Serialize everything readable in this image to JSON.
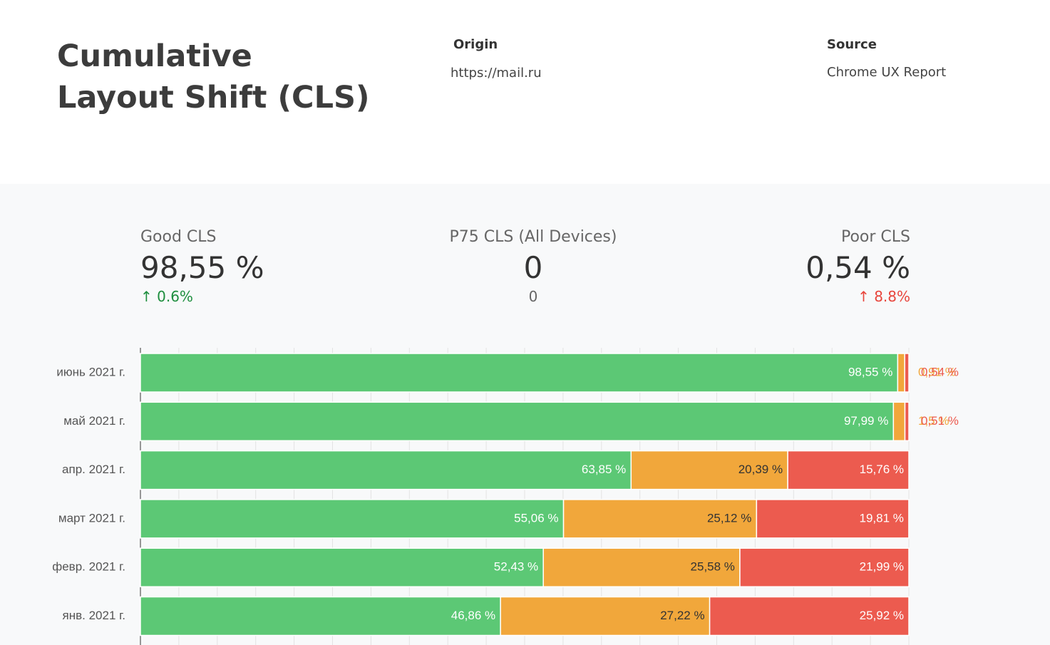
{
  "header": {
    "title": "Cumulative Layout Shift (CLS)",
    "origin_label": "Origin",
    "origin": "https://mail.ru",
    "source_label": "Source",
    "source": "Chrome UX Report"
  },
  "scorecards": [
    {
      "label": "Good CLS",
      "value": "98,55 %",
      "change": "0.6%"
    },
    {
      "label": "P75 CLS (All Devices)",
      "value": "0",
      "change": "0"
    },
    {
      "label": "Poor CLS",
      "value": "0,54 %",
      "change": "8.8%"
    }
  ],
  "chart_data": {
    "type": "stacked-bar-horizontal",
    "categories": [
      "июнь 2021 г.",
      "май 2021 г.",
      "апр. 2021 г.",
      "март 2021 г.",
      "февр. 2021 г.",
      "янв. 2021 г."
    ],
    "series": [
      {
        "color": "#5cc875",
        "values": [
          98.55,
          97.99,
          63.85,
          55.06,
          52.43,
          46.86
        ],
        "value_labels": [
          "98,55 %",
          "97,99 %",
          "63,85 %",
          "55,06 %",
          "52,43 %",
          "46,86 %"
        ]
      },
      {
        "color": "#f1a73b",
        "values": [
          0.91,
          1.5,
          20.39,
          25.12,
          25.58,
          27.22
        ],
        "value_labels": [
          "0,91 %",
          "1,5 %",
          "20,39 %",
          "25,12 %",
          "25,58 %",
          "27,22 %"
        ]
      },
      {
        "color": "#ec5b4f",
        "values": [
          0.54,
          0.51,
          15.76,
          19.81,
          21.99,
          25.92
        ],
        "value_labels": [
          "0,54 %",
          "0,51 %",
          "15,76 %",
          "19,81 %",
          "21,99 %",
          "25,92 %"
        ]
      }
    ],
    "xlim": [
      0,
      100
    ],
    "xticks": [
      0,
      5,
      10,
      15,
      20,
      25,
      30,
      35,
      40,
      45,
      50,
      55,
      60,
      65,
      70,
      75,
      80,
      85,
      90,
      95,
      100
    ],
    "grid": true
  }
}
